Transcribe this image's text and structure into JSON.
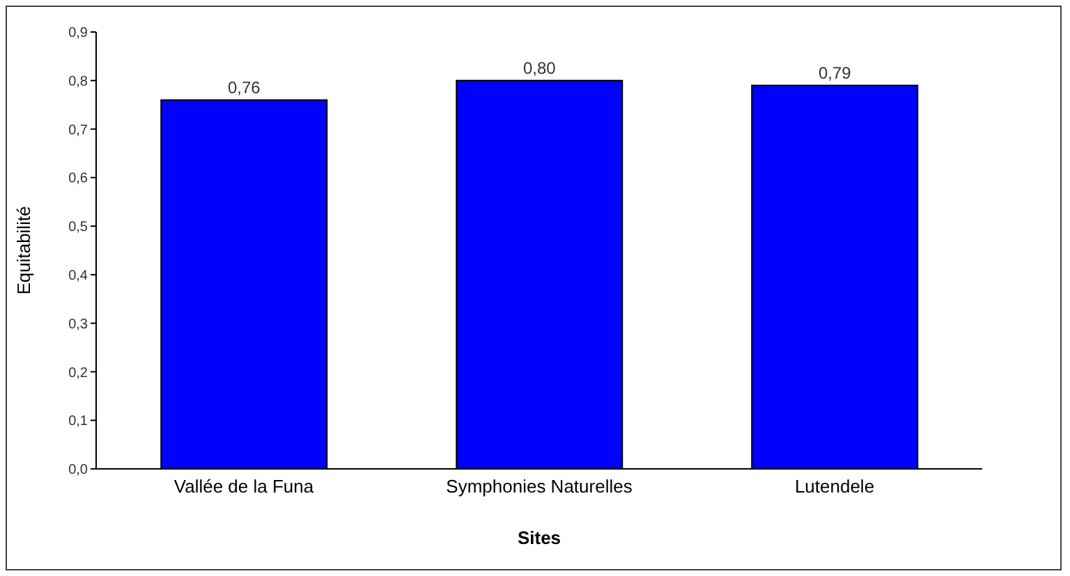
{
  "chart_data": {
    "type": "bar",
    "xlabel": "Sites",
    "ylabel": "Equitabilité",
    "categories": [
      "Vallée de la Funa",
      "Symphonies Naturelles",
      "Lutendele"
    ],
    "values": [
      0.76,
      0.8,
      0.79
    ],
    "color": "#0000ff",
    "value_labels": [
      "0,76",
      "0,80",
      "0,79"
    ],
    "ylim": [
      0,
      0.9
    ],
    "yticks": [
      {
        "value": 0,
        "label": "0,0"
      },
      {
        "value": 0.1,
        "label": "0,1"
      },
      {
        "value": 0.2,
        "label": "0,2"
      },
      {
        "value": 0.3,
        "label": "0,3"
      },
      {
        "value": 0.4,
        "label": "0,4"
      },
      {
        "value": 0.5,
        "label": "0,5"
      },
      {
        "value": 0.6,
        "label": "0,6"
      },
      {
        "value": 0.7,
        "label": "0,7"
      },
      {
        "value": 0.8,
        "label": "0,8"
      },
      {
        "value": 0.9,
        "label": "0,9"
      }
    ],
    "grid": false
  }
}
